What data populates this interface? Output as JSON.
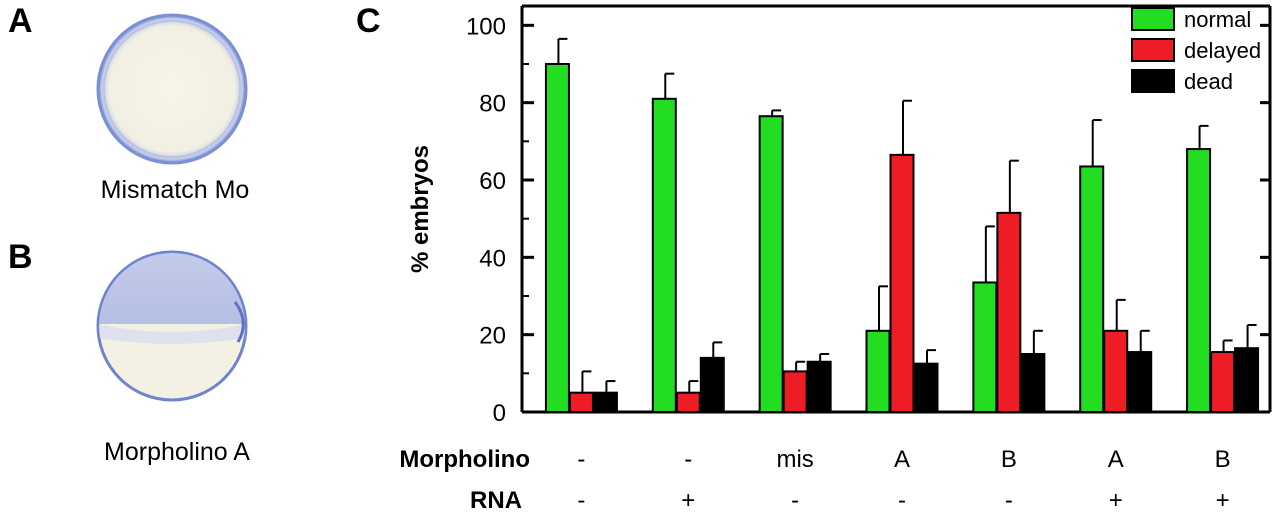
{
  "panels": {
    "a": {
      "letter": "A",
      "caption": "Mismatch Mo"
    },
    "b": {
      "letter": "B",
      "caption": "Morpholino A"
    },
    "c": {
      "letter": "C"
    }
  },
  "colors": {
    "normal": "#22dd22",
    "delayed": "#ee1c24",
    "dead": "#000000",
    "embryo_rim": "#6f84cf",
    "embryo_fill": "#f4f3e6",
    "embryo_shadow": "#b8c2e4"
  },
  "chart_data": {
    "type": "bar",
    "ylabel": "% embryos",
    "xlabel": "",
    "ylim": [
      0,
      105
    ],
    "yticks": [
      0,
      20,
      40,
      60,
      80,
      100
    ],
    "legend_position": "top-right",
    "row_headers": {
      "morpholino": "Morpholino",
      "rna": "RNA"
    },
    "categories": [
      {
        "morpholino": "-",
        "rna": "-"
      },
      {
        "morpholino": "-",
        "rna": "+"
      },
      {
        "morpholino": "mis",
        "rna": "-"
      },
      {
        "morpholino": "A",
        "rna": "-"
      },
      {
        "morpholino": "B",
        "rna": "-"
      },
      {
        "morpholino": "A",
        "rna": "+"
      },
      {
        "morpholino": "B",
        "rna": "+"
      }
    ],
    "series": [
      {
        "name": "normal",
        "color": "#22dd22",
        "values": [
          90,
          81,
          76.5,
          21,
          33.5,
          63.5,
          68
        ],
        "errors": [
          6.5,
          6.5,
          1.5,
          11.5,
          14.5,
          12,
          6
        ]
      },
      {
        "name": "delayed",
        "color": "#ee1c24",
        "values": [
          5,
          5,
          10.5,
          66.5,
          51.5,
          21,
          15.5
        ],
        "errors": [
          5.5,
          3,
          2.5,
          14,
          13.5,
          8,
          3
        ]
      },
      {
        "name": "dead",
        "color": "#000000",
        "values": [
          5,
          14,
          13,
          12.5,
          15,
          15.5,
          16.5
        ],
        "errors": [
          3,
          4,
          2,
          3.5,
          6,
          5.5,
          6
        ]
      }
    ]
  }
}
